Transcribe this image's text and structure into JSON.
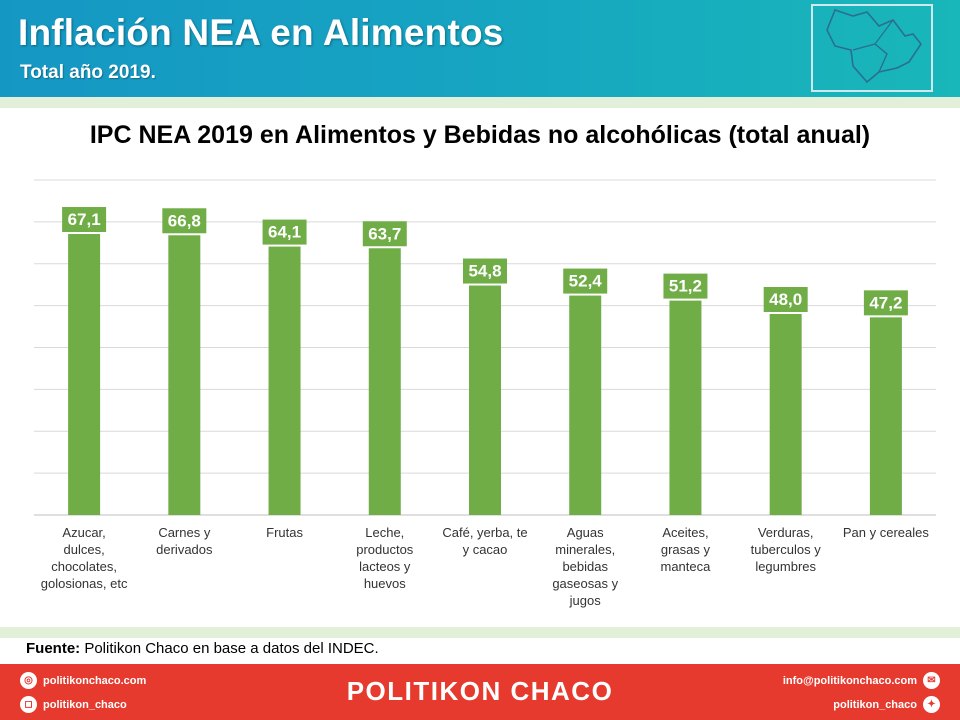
{
  "header": {
    "title": "Inflación NEA en Alimentos",
    "subtitle": "Total año 2019."
  },
  "chart_data": {
    "type": "bar",
    "title": "IPC NEA 2019 en Alimentos y Bebidas no alcohólicas (total anual)",
    "categories": [
      [
        "Azucar,",
        "dulces,",
        "chocolates,",
        "golosionas, etc"
      ],
      [
        "Carnes y",
        "derivados"
      ],
      [
        "Frutas"
      ],
      [
        "Leche,",
        "productos",
        "lacteos y",
        "huevos"
      ],
      [
        "Café, yerba, te",
        "y cacao"
      ],
      [
        "Aguas",
        "minerales,",
        "bebidas",
        "gaseosas y",
        "jugos"
      ],
      [
        "Aceites,",
        "grasas y",
        "manteca"
      ],
      [
        "Verduras,",
        "tuberculos y",
        "legumbres"
      ],
      [
        "Pan y cereales"
      ]
    ],
    "values": [
      67.1,
      66.8,
      64.1,
      63.7,
      54.8,
      52.4,
      51.2,
      48.0,
      47.2
    ],
    "value_labels": [
      "67,1",
      "66,8",
      "64,1",
      "63,7",
      "54,8",
      "52,4",
      "51,2",
      "48,0",
      "47,2"
    ],
    "ylim": [
      0,
      80
    ],
    "grid": true,
    "bar_color": "#70ad47"
  },
  "source": {
    "label": "Fuente:",
    "text": " Politikon Chaco en base a datos del INDEC."
  },
  "footer": {
    "brand": "POLITIKON CHACO",
    "website": "politikonchaco.com",
    "instagram": "politikon_chaco",
    "email": "info@politikonchaco.com",
    "twitter": "politikon_chaco"
  }
}
